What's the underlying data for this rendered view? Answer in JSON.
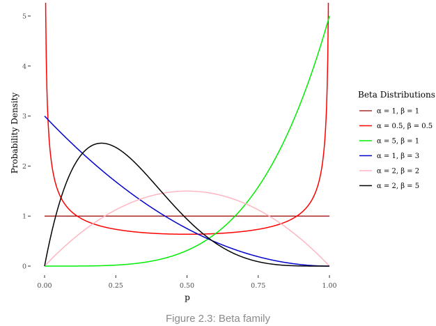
{
  "caption": "Figure 2.3: Beta family",
  "chart_data": {
    "type": "line",
    "title": "",
    "xlabel": "p",
    "ylabel": "Probability Density",
    "xlim": [
      0,
      1
    ],
    "ylim": [
      0,
      5.25
    ],
    "x_ticks": [
      0,
      0.25,
      0.5,
      0.75,
      1
    ],
    "x_tick_labels": [
      "0.00",
      "0.25",
      "0.50",
      "0.75",
      "1.00"
    ],
    "y_ticks": [
      0,
      1,
      2,
      3,
      4,
      5
    ],
    "y_tick_labels": [
      "0",
      "1",
      "2",
      "3",
      "4",
      "5"
    ],
    "grid": false,
    "legend": {
      "title": "Beta Distributions",
      "position": "right"
    },
    "series": [
      {
        "name": "α = 1, β = 1",
        "alpha": 1,
        "beta": 1,
        "color": "#a52a2a",
        "x": [
          0,
          0.25,
          0.5,
          0.75,
          1
        ],
        "y": [
          1,
          1,
          1,
          1,
          1
        ]
      },
      {
        "name": "α = 0.5, β = 0.5",
        "alpha": 0.5,
        "beta": 0.5,
        "color": "#ff0000",
        "x": [
          0.01,
          0.05,
          0.1,
          0.25,
          0.5,
          0.75,
          0.9,
          0.95,
          0.99
        ],
        "y": [
          3.2,
          1.46,
          1.06,
          0.74,
          0.64,
          0.74,
          1.06,
          1.46,
          3.2
        ]
      },
      {
        "name": "α = 5, β = 1",
        "alpha": 5,
        "beta": 1,
        "color": "#00ee00",
        "x": [
          0,
          0.25,
          0.5,
          0.75,
          1
        ],
        "y": [
          0,
          0.02,
          0.31,
          1.58,
          5
        ]
      },
      {
        "name": "α = 1, β = 3",
        "alpha": 1,
        "beta": 3,
        "color": "#0000cd",
        "x": [
          0,
          0.25,
          0.5,
          0.75,
          1
        ],
        "y": [
          3,
          1.69,
          0.75,
          0.19,
          0
        ]
      },
      {
        "name": "α = 2, β = 2",
        "alpha": 2,
        "beta": 2,
        "color": "#ffb6c1",
        "x": [
          0,
          0.25,
          0.5,
          0.75,
          1
        ],
        "y": [
          0,
          1.13,
          1.5,
          1.13,
          0
        ]
      },
      {
        "name": "α = 2, β = 5",
        "alpha": 2,
        "beta": 5,
        "color": "#000000",
        "x": [
          0,
          0.2,
          0.25,
          0.5,
          0.75,
          1
        ],
        "y": [
          0,
          2.46,
          2.37,
          0.94,
          0.09,
          0
        ]
      }
    ]
  }
}
